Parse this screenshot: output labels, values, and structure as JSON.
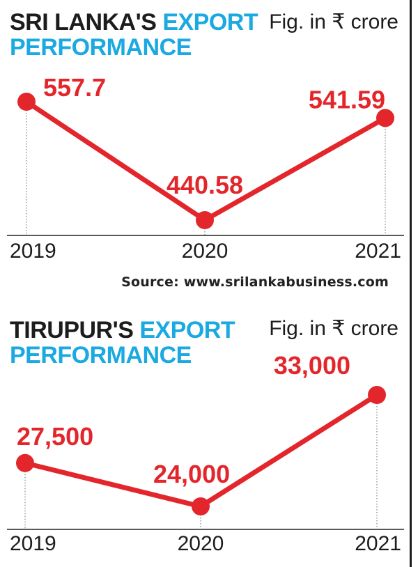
{
  "chart_data": [
    {
      "type": "line",
      "title": "SRI LANKA'S",
      "title_highlight": "EXPORT PERFORMANCE",
      "unit_note": "Fig. in ₹ crore",
      "categories": [
        "2019",
        "2020",
        "2021"
      ],
      "values": [
        557.7,
        440.58,
        541.59
      ],
      "value_labels": [
        "557.7",
        "440.58",
        "541.59"
      ],
      "source": "Source: www.srilankabusiness.com",
      "line_color": "#e3262b",
      "axis_color": "#222222"
    },
    {
      "type": "line",
      "title": "TIRUPUR'S",
      "title_highlight": "EXPORT PERFORMANCE",
      "unit_note": "Fig. in ₹ crore",
      "categories": [
        "2019",
        "2020",
        "2021"
      ],
      "values": [
        27500,
        24000,
        33000
      ],
      "value_labels": [
        "27,500",
        "24,000",
        "33,000"
      ],
      "line_color": "#e3262b",
      "axis_color": "#222222"
    }
  ]
}
